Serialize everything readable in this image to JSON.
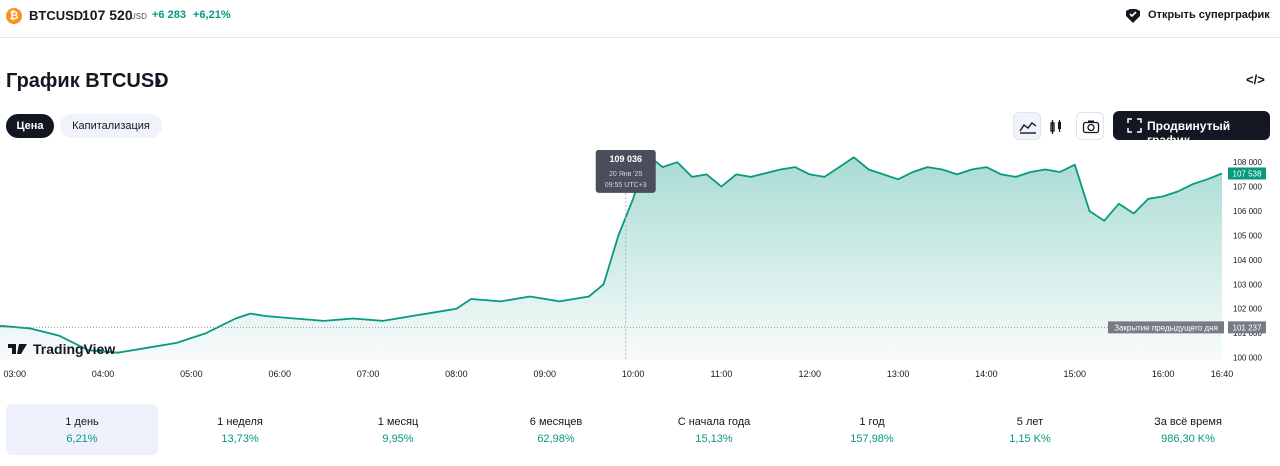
{
  "header": {
    "symbol": "BTCUSD",
    "coin_glyph": "₿",
    "price": "107 520",
    "currency": "USD",
    "change": "+6 283",
    "change_pct": "+6,21%",
    "supergraph_label": "Открыть суперграфик",
    "icons": [
      "bitcoin-coin-icon",
      "supercharts-icon"
    ]
  },
  "title": {
    "text": "График BTCUSD",
    "chevron": "›",
    "embed": "</>"
  },
  "tabs": [
    {
      "label": "Цена",
      "active": true
    },
    {
      "label": "Капитализация",
      "active": false
    }
  ],
  "toolbar": {
    "area_chart_icon": "area-chart-icon",
    "candles_icon": "candles-icon",
    "snapshot_icon": "camera-icon",
    "advanced_label": "Продвинутый график"
  },
  "chart_data": {
    "type": "area",
    "color": "#089981",
    "x_ticks": [
      "03:00",
      "04:00",
      "05:00",
      "06:00",
      "07:00",
      "08:00",
      "09:00",
      "10:00",
      "11:00",
      "12:00",
      "13:00",
      "14:00",
      "15:00",
      "16:00",
      "16:40"
    ],
    "y_ticks": [
      "108 000",
      "107 000",
      "106 000",
      "105 000",
      "104 000",
      "103 000",
      "102 000",
      "101 000",
      "100 000"
    ],
    "ylim": [
      99900,
      108500
    ],
    "x": [
      "02:50",
      "03:10",
      "03:30",
      "03:50",
      "04:10",
      "04:30",
      "04:50",
      "05:10",
      "05:30",
      "05:40",
      "05:50",
      "06:10",
      "06:30",
      "06:50",
      "07:10",
      "07:30",
      "07:50",
      "08:00",
      "08:10",
      "08:30",
      "08:50",
      "09:10",
      "09:30",
      "09:40",
      "09:50",
      "10:00",
      "10:10",
      "10:20",
      "10:30",
      "10:40",
      "10:50",
      "11:00",
      "11:10",
      "11:20",
      "11:40",
      "11:50",
      "12:00",
      "12:10",
      "12:20",
      "12:30",
      "12:40",
      "12:50",
      "13:00",
      "13:10",
      "13:20",
      "13:30",
      "13:40",
      "13:50",
      "14:00",
      "14:10",
      "14:20",
      "14:30",
      "14:40",
      "14:50",
      "15:00",
      "15:10",
      "15:20",
      "15:30",
      "15:40",
      "15:50",
      "16:00",
      "16:10",
      "16:20",
      "16:30",
      "16:40"
    ],
    "y": [
      101300,
      101200,
      100900,
      100300,
      100200,
      100400,
      100600,
      101000,
      101600,
      101800,
      101700,
      101600,
      101500,
      101600,
      101500,
      101700,
      101900,
      102000,
      102400,
      102300,
      102500,
      102300,
      102500,
      103000,
      105000,
      106500,
      108300,
      107800,
      108000,
      107400,
      107500,
      107000,
      107500,
      107400,
      107700,
      107800,
      107500,
      107400,
      107800,
      108200,
      107700,
      107500,
      107300,
      107600,
      107800,
      107700,
      107500,
      107700,
      107800,
      107500,
      107400,
      107600,
      107700,
      107600,
      107900,
      106000,
      105600,
      106300,
      105900,
      106500,
      106600,
      106800,
      107100,
      107300,
      107538
    ],
    "tooltip": {
      "value": "109 036",
      "date": "20 Янв '25",
      "time": "09:55 UTC+3",
      "x": "09:55",
      "y": 109036
    },
    "prev_close": {
      "label": "Закрытие предыдущего дня",
      "value": "101 237",
      "y": 101237
    },
    "last": {
      "value": "107 538",
      "y": 107538
    },
    "logo": "TradingView"
  },
  "performance": [
    {
      "label": "1 день",
      "value": "6,21%",
      "selected": true
    },
    {
      "label": "1 неделя",
      "value": "13,73%",
      "selected": false
    },
    {
      "label": "1 месяц",
      "value": "9,95%",
      "selected": false
    },
    {
      "label": "6 месяцев",
      "value": "62,98%",
      "selected": false
    },
    {
      "label": "С начала года",
      "value": "15,13%",
      "selected": false
    },
    {
      "label": "1 год",
      "value": "157,98%",
      "selected": false
    },
    {
      "label": "5 лет",
      "value": "1,15 K%",
      "selected": false
    },
    {
      "label": "За всё время",
      "value": "986,30 K%",
      "selected": false
    }
  ]
}
